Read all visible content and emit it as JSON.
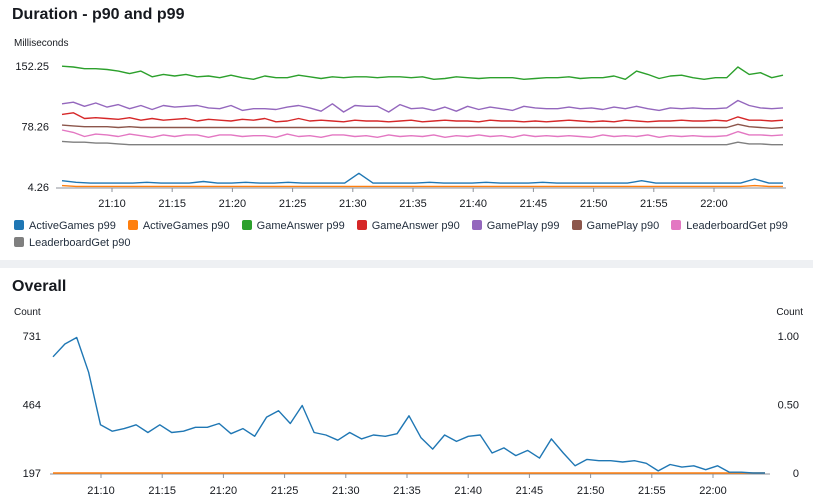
{
  "charts": [
    {
      "title": "Duration - p90 and p99"
    },
    {
      "title": "Overall"
    }
  ],
  "chart_data": [
    {
      "type": "line",
      "title": "Duration - p90 and p99",
      "ylabel": "Milliseconds",
      "xlabel": "",
      "ylim": [
        4.26,
        152.25
      ],
      "yticks": [
        "152.25",
        "78.26",
        "4.26"
      ],
      "xticks": [
        "21:10",
        "21:15",
        "21:20",
        "21:25",
        "21:30",
        "21:35",
        "21:40",
        "21:45",
        "21:50",
        "21:55",
        "22:00"
      ],
      "grid": false,
      "legend_position": "bottom",
      "series": [
        {
          "name": "ActiveGames p99",
          "color": "#1f77b4",
          "values": [
            12,
            10,
            9,
            9,
            9,
            9,
            10,
            9,
            9,
            9,
            11,
            9,
            9,
            10,
            9,
            9,
            10,
            9,
            9,
            9,
            9,
            21,
            9,
            9,
            9,
            9,
            10,
            9,
            9,
            9,
            10,
            9,
            9,
            9,
            10,
            9,
            9,
            9,
            9,
            9,
            9,
            12,
            9,
            9,
            9,
            9,
            9,
            9,
            9,
            14,
            9,
            9
          ]
        },
        {
          "name": "ActiveGames p90",
          "color": "#ff7f0e",
          "values": [
            6,
            5,
            5,
            5,
            5,
            5,
            5,
            5,
            5,
            5,
            5,
            5,
            5,
            5,
            5,
            5,
            5,
            5,
            5,
            5,
            5,
            5,
            5,
            5,
            5,
            5,
            5,
            5,
            5,
            5,
            5,
            5,
            5,
            5,
            5,
            5,
            5,
            5,
            5,
            5,
            5,
            5,
            5,
            5,
            5,
            5,
            5,
            5,
            5,
            6,
            5,
            5
          ]
        },
        {
          "name": "GameAnswer p99",
          "color": "#2ca02c",
          "values": [
            152,
            151,
            149,
            149,
            148,
            146,
            143,
            146,
            139,
            142,
            140,
            142,
            139,
            140,
            138,
            141,
            138,
            136,
            140,
            138,
            138,
            141,
            139,
            137,
            139,
            138,
            139,
            139,
            138,
            139,
            139,
            138,
            139,
            136,
            137,
            139,
            138,
            137,
            138,
            138,
            138,
            136,
            137,
            138,
            138,
            139,
            137,
            138,
            138,
            140,
            136,
            146,
            142,
            137,
            140,
            141,
            138,
            136,
            138,
            138,
            151,
            142,
            144,
            138,
            141
          ]
        },
        {
          "name": "GameAnswer p90",
          "color": "#d62728",
          "values": [
            93,
            95,
            88,
            89,
            88,
            87,
            89,
            86,
            88,
            86,
            87,
            88,
            85,
            87,
            86,
            85,
            87,
            86,
            88,
            84,
            85,
            88,
            85,
            86,
            85,
            84,
            86,
            85,
            85,
            84,
            85,
            86,
            84,
            85,
            86,
            85,
            85,
            84,
            86,
            85,
            85,
            84,
            85,
            84,
            85,
            86,
            85,
            84,
            85,
            84,
            86,
            85,
            84,
            85,
            85,
            86,
            85,
            85,
            86,
            85,
            90,
            86,
            86,
            85,
            86
          ]
        },
        {
          "name": "GamePlay p99",
          "color": "#9467bd",
          "values": [
            106,
            108,
            103,
            107,
            102,
            105,
            100,
            104,
            99,
            104,
            102,
            103,
            104,
            101,
            100,
            104,
            98,
            100,
            100,
            99,
            102,
            104,
            101,
            97,
            106,
            96,
            104,
            103,
            103,
            96,
            105,
            100,
            101,
            98,
            102,
            97,
            103,
            99,
            102,
            100,
            98,
            103,
            101,
            100,
            100,
            102,
            100,
            101,
            99,
            102,
            100,
            103,
            100,
            98,
            101,
            100,
            101,
            100,
            100,
            101,
            110,
            104,
            101,
            100,
            101
          ]
        },
        {
          "name": "GamePlay p90",
          "color": "#8c564b",
          "values": [
            80,
            79,
            78,
            78,
            78,
            77,
            78,
            77,
            77,
            77,
            77,
            77,
            77,
            77,
            77,
            77,
            77,
            77,
            77,
            77,
            77,
            77,
            77,
            77,
            77,
            77,
            77,
            77,
            77,
            77,
            77,
            77,
            77,
            77,
            77,
            77,
            77,
            77,
            77,
            77,
            77,
            77,
            77,
            77,
            77,
            77,
            77,
            77,
            77,
            77,
            77,
            77,
            77,
            77,
            77,
            77,
            77,
            77,
            77,
            77,
            81,
            78,
            77,
            76,
            77
          ]
        },
        {
          "name": "LeaderboardGet p99",
          "color": "#e377c2",
          "values": [
            74,
            71,
            66,
            69,
            68,
            66,
            69,
            67,
            65,
            68,
            66,
            68,
            68,
            65,
            68,
            68,
            66,
            67,
            67,
            65,
            69,
            66,
            67,
            65,
            68,
            68,
            66,
            67,
            65,
            68,
            66,
            67,
            66,
            68,
            65,
            67,
            66,
            68,
            66,
            67,
            65,
            68,
            66,
            67,
            66,
            67,
            66,
            65,
            68,
            66,
            67,
            66,
            68,
            65,
            67,
            66,
            67,
            66,
            66,
            67,
            72,
            68,
            68,
            67,
            68
          ]
        },
        {
          "name": "LeaderboardGet p90",
          "color": "#7f7f7f",
          "values": [
            60,
            59,
            59,
            58,
            58,
            57,
            56,
            56,
            56,
            56,
            56,
            56,
            56,
            56,
            56,
            56,
            56,
            56,
            56,
            56,
            56,
            56,
            56,
            56,
            56,
            56,
            56,
            56,
            56,
            56,
            56,
            56,
            56,
            56,
            56,
            56,
            56,
            56,
            56,
            56,
            56,
            56,
            56,
            56,
            56,
            56,
            56,
            56,
            56,
            56,
            56,
            56,
            56,
            56,
            56,
            56,
            56,
            56,
            56,
            56,
            59,
            57,
            57,
            56,
            56
          ]
        }
      ]
    },
    {
      "type": "line",
      "title": "Overall",
      "ylabel": "Count",
      "y2label": "Count",
      "xlabel": "",
      "ylim": [
        197,
        731
      ],
      "y2lim": [
        0,
        1
      ],
      "yticks": [
        "731",
        "464",
        "197"
      ],
      "y2ticks": [
        "1.00",
        "0.50",
        "0"
      ],
      "xticks": [
        "21:10",
        "21:15",
        "21:20",
        "21:25",
        "21:30",
        "21:35",
        "21:40",
        "21:45",
        "21:50",
        "21:55",
        "22:00"
      ],
      "grid": false,
      "series": [
        {
          "name": "ActiveGames p99",
          "color": "#1f77b4",
          "values": [
            650,
            700,
            725,
            590,
            385,
            360,
            370,
            385,
            355,
            385,
            355,
            360,
            375,
            375,
            390,
            350,
            370,
            340,
            415,
            440,
            390,
            460,
            355,
            345,
            325,
            355,
            330,
            345,
            340,
            350,
            420,
            335,
            290,
            345,
            320,
            340,
            345,
            275,
            295,
            265,
            285,
            255,
            330,
            275,
            225,
            250,
            245,
            245,
            240,
            245,
            235,
            205,
            230,
            220,
            225,
            210,
            225,
            200,
            200,
            197,
            197
          ]
        },
        {
          "name": "ActiveGames p90",
          "color": "#ff7f0e",
          "values": [
            197,
            197,
            197,
            197,
            197,
            197,
            197,
            197,
            197,
            197,
            197,
            197,
            197,
            197,
            197,
            197,
            197,
            197,
            197,
            197,
            197,
            197,
            197,
            197,
            197,
            197,
            197,
            197,
            197,
            197,
            197,
            197,
            197,
            197,
            197,
            197,
            197,
            197,
            197,
            197,
            197,
            197,
            197,
            197,
            197,
            197,
            197,
            197,
            197,
            197,
            197,
            197,
            197,
            197,
            197,
            197,
            197,
            197,
            197,
            197,
            197
          ]
        }
      ]
    }
  ]
}
